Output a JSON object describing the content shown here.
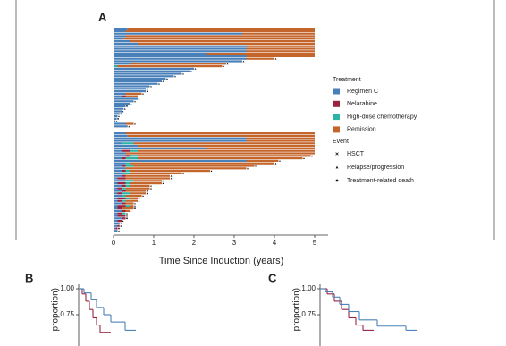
{
  "chart_data": [
    {
      "type": "swimmer",
      "panel": "A",
      "xlabel": "Time Since Induction (years)",
      "xlim": [
        0,
        5.5
      ],
      "xticks": [
        0,
        1,
        2,
        3,
        4,
        5
      ],
      "legend_title": "Treatment",
      "treatments": [
        {
          "name": "Regimen C",
          "color": "#4a80b9"
        },
        {
          "name": "Nelarabine",
          "color": "#9a2440"
        },
        {
          "name": "High-dose chemotherapy",
          "color": "#2bb3a3"
        },
        {
          "name": "Remission",
          "color": "#c4652b"
        }
      ],
      "event_title": "Event",
      "events": [
        {
          "name": "HSCT",
          "marker": "x"
        },
        {
          "name": "Relapse/progression",
          "marker": "triangle"
        },
        {
          "name": "Treatment-related death",
          "marker": "circle"
        }
      ],
      "groups": [
        {
          "rows": [
            [
              0.35,
              0,
              0,
              4.65,
              null
            ],
            [
              0.3,
              0,
              0,
              4.7,
              null
            ],
            [
              3.2,
              0,
              0,
              1.8,
              null
            ],
            [
              0.3,
              0,
              0,
              4.7,
              null
            ],
            [
              0.25,
              0,
              0,
              4.75,
              null
            ],
            [
              0.4,
              0,
              0,
              4.6,
              null
            ],
            [
              0.6,
              0,
              0,
              4.4,
              null
            ],
            [
              3.3,
              0,
              0,
              1.7,
              null
            ],
            [
              3.3,
              0,
              0,
              1.7,
              null
            ],
            [
              3.3,
              0,
              0,
              1.7,
              null
            ],
            [
              2.3,
              0,
              0,
              2.7,
              null
            ],
            [
              3.3,
              0,
              0,
              1.7,
              null
            ],
            [
              3.3,
              0,
              0,
              0.7,
              1
            ],
            [
              3.2,
              0,
              0,
              0,
              1
            ],
            [
              0.4,
              0,
              0,
              2.4,
              1
            ],
            [
              0,
              0,
              0.1,
              2.6,
              1
            ],
            [
              2.0,
              0,
              0,
              0,
              1
            ],
            [
              1.9,
              0,
              0,
              0,
              1
            ],
            [
              1.7,
              0,
              0,
              0,
              1
            ],
            [
              1.5,
              0,
              0,
              0,
              1
            ],
            [
              1.3,
              0,
              0,
              0,
              1
            ],
            [
              1.2,
              0,
              0,
              0,
              1
            ],
            [
              1.1,
              0,
              0,
              0,
              1
            ],
            [
              0.9,
              0,
              0,
              0,
              1
            ],
            [
              0.8,
              0,
              0,
              0,
              1
            ],
            [
              0.8,
              0,
              0,
              0,
              1
            ],
            [
              0.3,
              0,
              0,
              0.4,
              1
            ],
            [
              0.2,
              0.1,
              0,
              0.3,
              1
            ],
            [
              0.6,
              0,
              0,
              0,
              1
            ],
            [
              0.5,
              0,
              0,
              0,
              1
            ],
            [
              0.4,
              0,
              0,
              0,
              1
            ],
            [
              0.3,
              0,
              0,
              0,
              2
            ],
            [
              0.25,
              0,
              0,
              0,
              1
            ],
            [
              0.2,
              0,
              0,
              0,
              1
            ],
            [
              0.15,
              0,
              0,
              0,
              2
            ],
            [
              0.1,
              0,
              0,
              0,
              1
            ],
            [
              0.08,
              0,
              0,
              0,
              2
            ],
            [
              0.05,
              0,
              0,
              0,
              1
            ],
            [
              0.3,
              0,
              0,
              0.2,
              1
            ],
            [
              0.35,
              0,
              0,
              0,
              1
            ]
          ]
        },
        {
          "rows": [
            [
              0.3,
              0,
              0,
              4.7,
              null
            ],
            [
              0.35,
              0,
              0,
              4.65,
              null
            ],
            [
              3.3,
              0,
              0,
              1.7,
              null
            ],
            [
              3.3,
              0,
              0,
              1.7,
              null
            ],
            [
              0.2,
              0,
              0.3,
              4.5,
              null
            ],
            [
              0.6,
              0,
              0,
              4.4,
              null
            ],
            [
              2.3,
              0,
              0,
              2.7,
              null
            ],
            [
              0.2,
              0.2,
              0.2,
              4.4,
              null
            ],
            [
              0.3,
              0,
              0,
              4.7,
              null
            ],
            [
              0.3,
              0.1,
              0.2,
              4.3,
              1
            ],
            [
              0.2,
              0.1,
              0.3,
              4.1,
              1
            ],
            [
              3.3,
              0,
              0,
              0.8,
              1
            ],
            [
              0.3,
              0,
              0.1,
              3.6,
              1
            ],
            [
              0.2,
              0.1,
              0.2,
              3.0,
              1
            ],
            [
              0.3,
              0,
              0,
              3.0,
              1
            ],
            [
              0.2,
              0.1,
              0.1,
              2.0,
              1
            ],
            [
              0.2,
              0,
              0.2,
              1.3,
              1
            ],
            [
              0.2,
              0.1,
              0,
              1.1,
              1
            ],
            [
              0.1,
              0.2,
              0,
              1.1,
              1
            ],
            [
              0.3,
              0,
              0.2,
              0.7,
              1
            ],
            [
              0.1,
              0.2,
              0.1,
              0.8,
              1
            ],
            [
              0.2,
              0.1,
              0.1,
              0.5,
              1
            ],
            [
              0.1,
              0.1,
              0.1,
              0.6,
              1
            ],
            [
              0.2,
              0.1,
              0,
              0.5,
              1
            ],
            [
              0.1,
              0.1,
              0.2,
              0.4,
              1
            ],
            [
              0.2,
              0,
              0.1,
              0.4,
              1
            ],
            [
              0.1,
              0.2,
              0.1,
              0.2,
              1
            ],
            [
              0.1,
              0.1,
              0.1,
              0.3,
              1
            ],
            [
              0.2,
              0.1,
              0,
              0.2,
              1
            ],
            [
              0.1,
              0.2,
              0.1,
              0.1,
              1
            ],
            [
              0.1,
              0.1,
              0,
              0.3,
              2
            ],
            [
              0.2,
              0.1,
              0,
              0.1,
              1
            ],
            [
              0.1,
              0.1,
              0.1,
              0,
              1
            ],
            [
              0.1,
              0.2,
              0,
              0,
              1
            ],
            [
              0.2,
              0.1,
              0,
              0,
              2
            ],
            [
              0.1,
              0.1,
              0,
              0,
              1
            ],
            [
              0.15,
              0,
              0,
              0,
              1
            ],
            [
              0.1,
              0.05,
              0,
              0,
              1
            ],
            [
              0.05,
              0.05,
              0,
              0,
              2
            ],
            [
              0.1,
              0,
              0,
              0,
              1
            ]
          ]
        }
      ]
    },
    {
      "type": "km",
      "panel": "B",
      "ylabel": "proportion)",
      "xlim": [
        0,
        5
      ],
      "ylim": [
        0,
        1
      ],
      "yticks": [
        {
          "value": 1,
          "label": "1.00"
        },
        {
          "value": 0.75,
          "label": "0.75"
        }
      ],
      "series": [
        {
          "color": "#9a2440",
          "x": [
            0,
            0.1,
            0.2,
            0.3,
            0.4,
            0.5,
            0.6
          ],
          "y": [
            1,
            0.95,
            0.88,
            0.8,
            0.72,
            0.65,
            0.58
          ]
        },
        {
          "color": "#4a80b9",
          "x": [
            0,
            0.15,
            0.35,
            0.5,
            0.7,
            0.9,
            1.3
          ],
          "y": [
            1,
            0.96,
            0.9,
            0.82,
            0.75,
            0.68,
            0.6
          ]
        }
      ]
    },
    {
      "type": "km",
      "panel": "C",
      "ylabel": "proportion)",
      "xlim": [
        0,
        5
      ],
      "ylim": [
        0,
        1
      ],
      "yticks": [
        {
          "value": 1,
          "label": "1.00"
        },
        {
          "value": 0.75,
          "label": "0.75"
        }
      ],
      "series": [
        {
          "color": "#9a2440",
          "x": [
            0,
            0.2,
            0.4,
            0.6,
            0.8,
            1.0,
            1.2
          ],
          "y": [
            1,
            0.95,
            0.88,
            0.8,
            0.72,
            0.65,
            0.6
          ]
        },
        {
          "color": "#4a80b9",
          "x": [
            0,
            0.15,
            0.35,
            0.55,
            0.8,
            1.1,
            1.6,
            2.4
          ],
          "y": [
            1,
            0.97,
            0.92,
            0.85,
            0.78,
            0.7,
            0.64,
            0.6
          ]
        }
      ]
    }
  ]
}
